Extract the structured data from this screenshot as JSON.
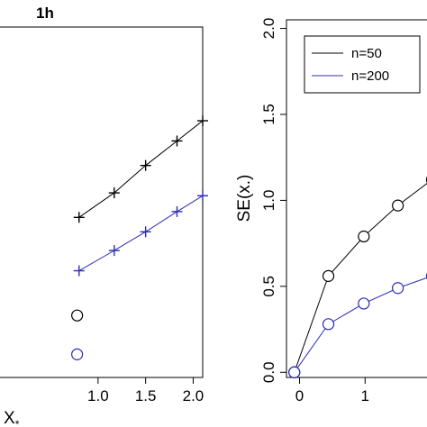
{
  "chart_data": [
    {
      "type": "line",
      "title": "1h",
      "xlabel": "X*",
      "ylabel": "",
      "xlim": [
        -0.05,
        2.1
      ],
      "ylim": [
        0.52,
        2.95
      ],
      "xticks": [
        "1.0",
        "1.5",
        "2.0"
      ],
      "grid": false,
      "series": [
        {
          "name": "",
          "color": "#000000",
          "marker": "plus",
          "x": [
            0.8,
            1.17,
            1.5,
            1.83,
            2.1
          ],
          "y": [
            1.63,
            1.8,
            1.99,
            2.16,
            2.3
          ]
        },
        {
          "name": "",
          "color": "#2b2bb8",
          "marker": "plus",
          "x": [
            0.8,
            1.17,
            1.5,
            1.83,
            2.1
          ],
          "y": [
            1.26,
            1.4,
            1.53,
            1.67,
            1.78
          ]
        },
        {
          "name": "",
          "color": "#000000",
          "marker": "circle",
          "x": [
            0.78
          ],
          "y": [
            0.95
          ]
        },
        {
          "name": "",
          "color": "#2b2bb8",
          "marker": "circle",
          "x": [
            0.78
          ],
          "y": [
            0.68
          ]
        }
      ]
    },
    {
      "type": "line",
      "title": "",
      "xlabel": "",
      "ylabel": "SE(x.)",
      "xlim": [
        -0.2,
        2.0
      ],
      "ylim": [
        -0.03,
        2.05
      ],
      "xticks": [
        "0",
        "1"
      ],
      "yticks": [
        "0.0",
        "0.5",
        "1.0",
        "1.5",
        "2.0"
      ],
      "legend": "top-right",
      "grid": false,
      "series": [
        {
          "name": "n=50",
          "color": "#000000",
          "marker": "circle",
          "x": [
            -0.08,
            0.44,
            0.98,
            1.5,
            2.02
          ],
          "y": [
            0.0,
            0.56,
            0.79,
            0.97,
            1.12
          ]
        },
        {
          "name": "n=200",
          "color": "#2b2bb8",
          "marker": "circle",
          "x": [
            -0.08,
            0.44,
            0.98,
            1.5,
            2.02
          ],
          "y": [
            0.0,
            0.28,
            0.4,
            0.49,
            0.56
          ]
        }
      ]
    }
  ]
}
